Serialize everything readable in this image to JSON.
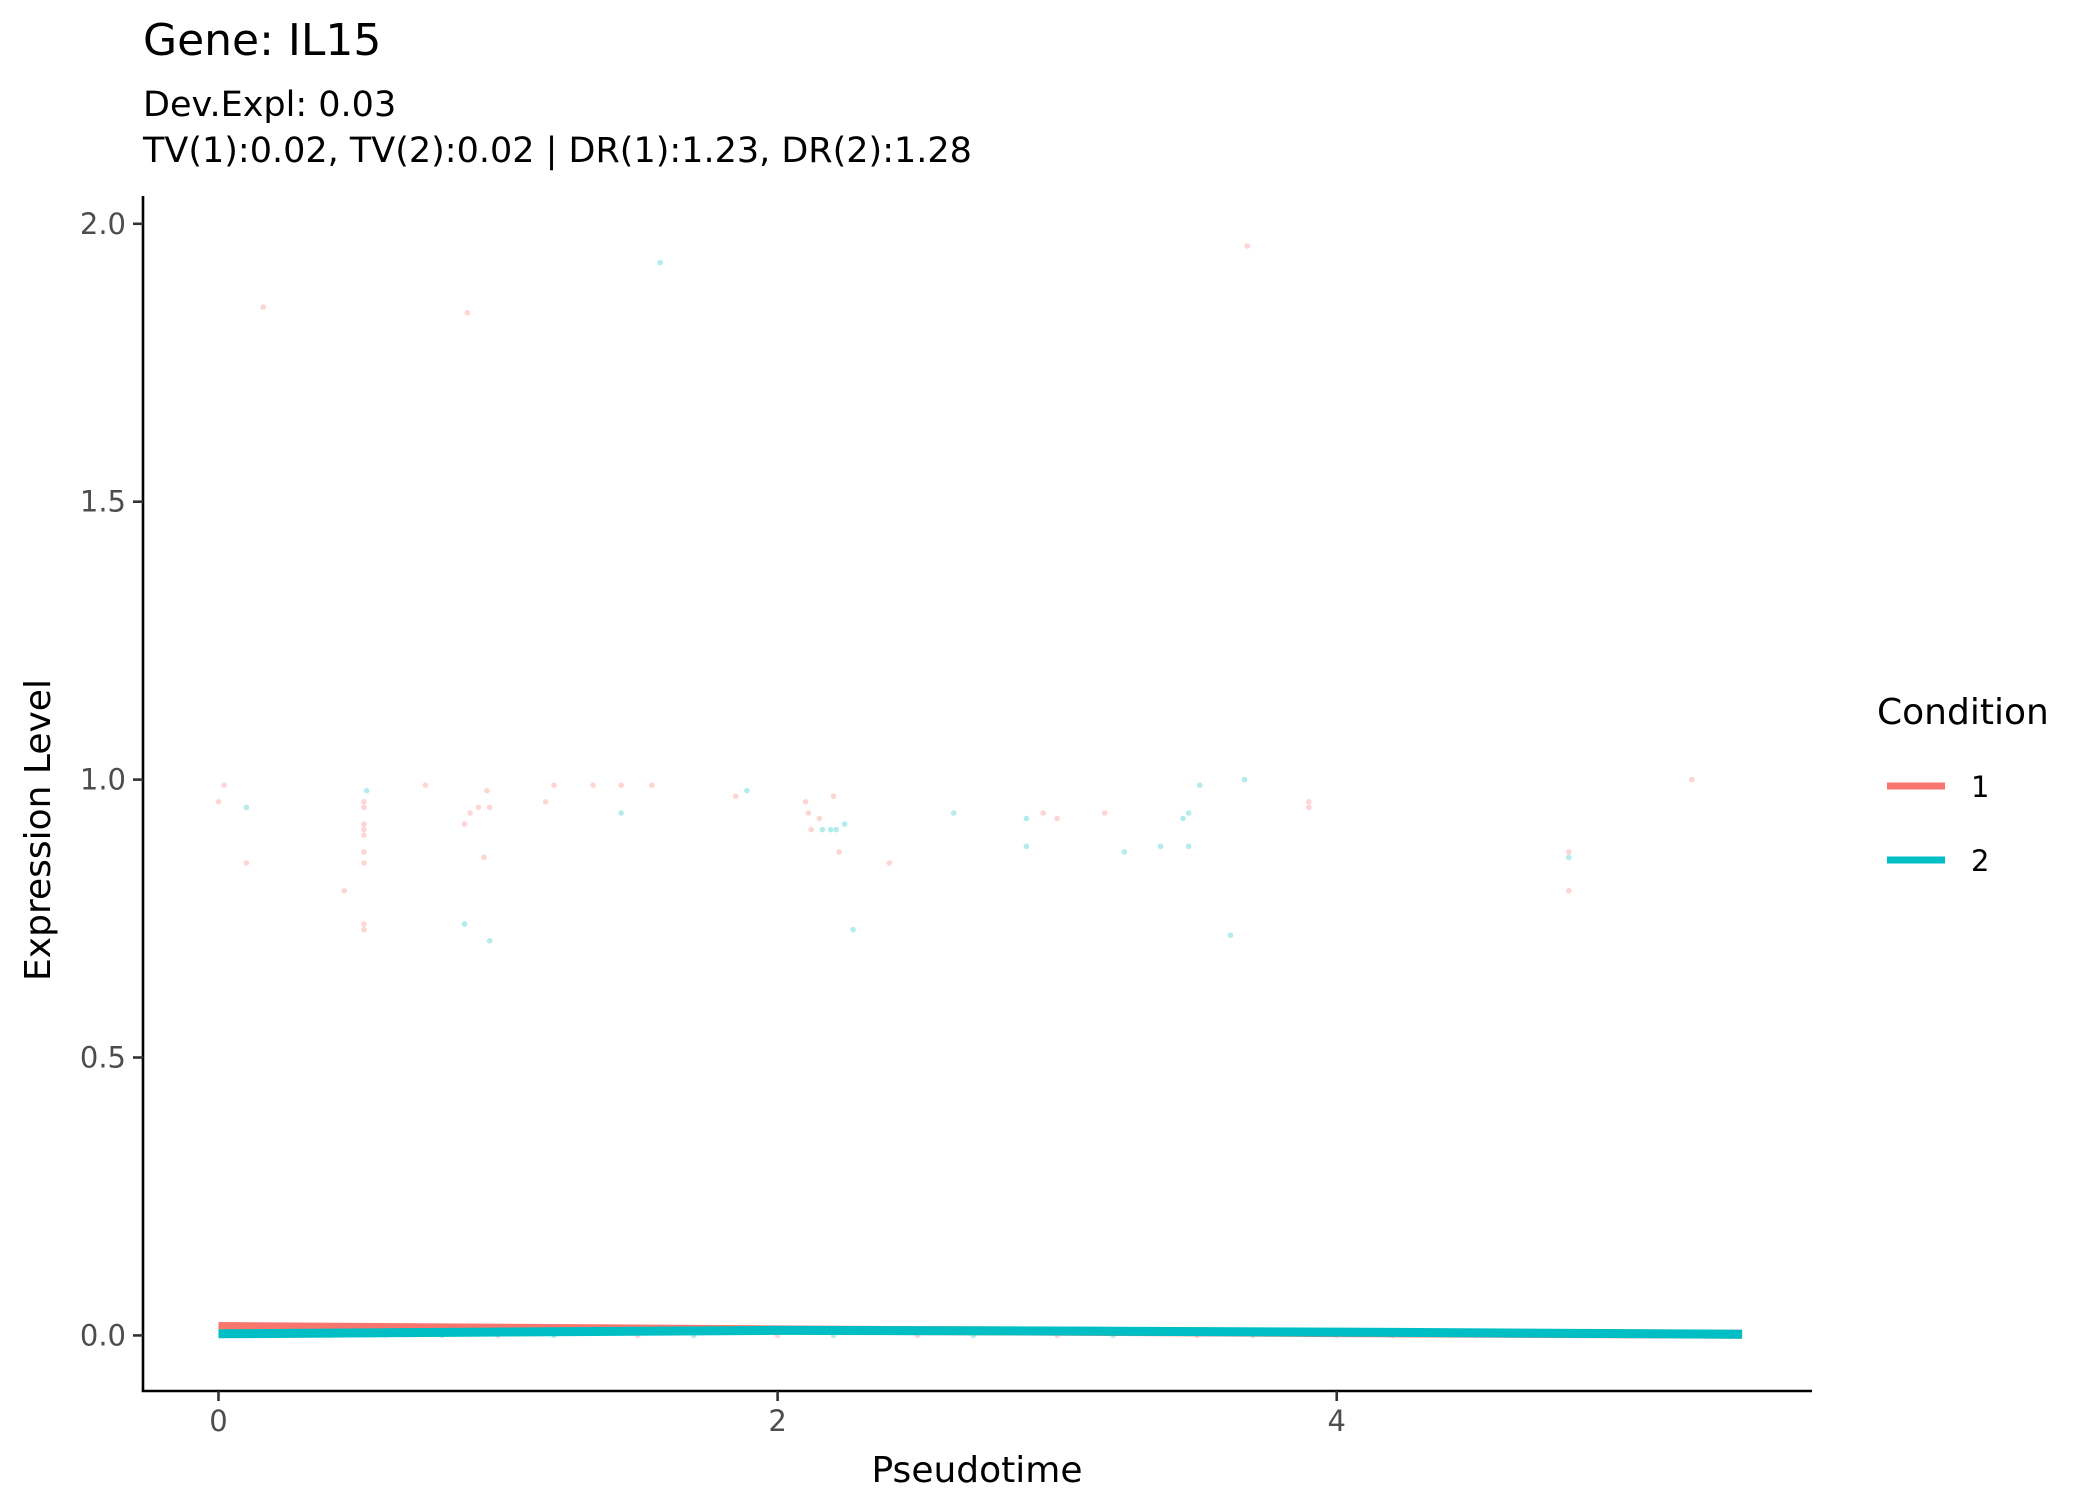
{
  "chart_data": {
    "type": "scatter",
    "title": "Gene: IL15",
    "subtitle_lines": [
      "Dev.Expl: 0.03",
      "TV(1):0.02, TV(2):0.02 | DR(1):1.23, DR(2):1.28"
    ],
    "xlabel": "Pseudotime",
    "ylabel": "Expression Level",
    "xlim": [
      -0.27,
      5.7
    ],
    "ylim": [
      -0.1,
      2.05
    ],
    "x_ticks": [
      0,
      2,
      4
    ],
    "x_tick_labels": [
      "0",
      "2",
      "4"
    ],
    "y_ticks": [
      0.0,
      0.5,
      1.0,
      1.5,
      2.0
    ],
    "y_tick_labels": [
      "0.0",
      "0.5",
      "1.0",
      "1.5",
      "2.0"
    ],
    "grid": false,
    "legend": {
      "title": "Condition",
      "placement": "right",
      "entries": [
        {
          "label": "1",
          "color": "#F8766D"
        },
        {
          "label": "2",
          "color": "#00BFC4"
        }
      ]
    },
    "series": [
      {
        "name": "1",
        "color": "#F8766D",
        "points": [
          [
            0.0,
            0.96
          ],
          [
            0.02,
            0.99
          ],
          [
            0.1,
            0.85
          ],
          [
            0.16,
            1.85
          ],
          [
            0.45,
            0.8
          ],
          [
            0.52,
            0.92
          ],
          [
            0.52,
            0.96
          ],
          [
            0.52,
            0.95
          ],
          [
            0.52,
            0.9
          ],
          [
            0.52,
            0.91
          ],
          [
            0.52,
            0.87
          ],
          [
            0.52,
            0.85
          ],
          [
            0.52,
            0.74
          ],
          [
            0.52,
            0.73
          ],
          [
            0.74,
            0.99
          ],
          [
            0.88,
            0.92
          ],
          [
            0.89,
            1.84
          ],
          [
            0.9,
            0.94
          ],
          [
            0.93,
            0.95
          ],
          [
            0.95,
            0.86
          ],
          [
            0.96,
            0.98
          ],
          [
            0.97,
            0.95
          ],
          [
            1.17,
            0.96
          ],
          [
            1.2,
            0.99
          ],
          [
            1.34,
            0.99
          ],
          [
            1.44,
            0.99
          ],
          [
            1.55,
            0.99
          ],
          [
            1.85,
            0.97
          ],
          [
            2.1,
            0.96
          ],
          [
            2.11,
            0.94
          ],
          [
            2.12,
            0.91
          ],
          [
            2.15,
            0.93
          ],
          [
            2.2,
            0.97
          ],
          [
            2.22,
            0.87
          ],
          [
            2.4,
            0.85
          ],
          [
            2.95,
            0.94
          ],
          [
            3.0,
            0.93
          ],
          [
            3.17,
            0.94
          ],
          [
            3.68,
            1.96
          ],
          [
            3.9,
            0.96
          ],
          [
            3.9,
            0.95
          ],
          [
            4.83,
            0.87
          ],
          [
            4.83,
            0.8
          ],
          [
            5.27,
            1.0
          ],
          [
            0.05,
            0.0
          ],
          [
            0.3,
            0.0
          ],
          [
            0.6,
            0.0
          ],
          [
            1.0,
            0.0
          ],
          [
            1.5,
            0.0
          ],
          [
            2.0,
            0.0
          ],
          [
            2.5,
            0.0
          ],
          [
            3.0,
            0.0
          ],
          [
            3.5,
            0.0
          ],
          [
            4.0,
            0.0
          ],
          [
            4.5,
            0.0
          ],
          [
            5.0,
            0.0
          ]
        ],
        "fit": [
          [
            0.0,
            0.016
          ],
          [
            2.0,
            0.01
          ],
          [
            4.0,
            0.005
          ],
          [
            5.45,
            0.002
          ]
        ]
      },
      {
        "name": "2",
        "color": "#00BFC4",
        "points": [
          [
            0.1,
            0.95
          ],
          [
            0.53,
            0.98
          ],
          [
            0.88,
            0.74
          ],
          [
            0.97,
            0.71
          ],
          [
            1.44,
            0.94
          ],
          [
            1.58,
            1.93
          ],
          [
            1.89,
            0.98
          ],
          [
            2.16,
            0.91
          ],
          [
            2.19,
            0.91
          ],
          [
            2.21,
            0.91
          ],
          [
            2.24,
            0.92
          ],
          [
            2.27,
            0.73
          ],
          [
            2.63,
            0.94
          ],
          [
            2.89,
            0.93
          ],
          [
            2.89,
            0.88
          ],
          [
            3.24,
            0.87
          ],
          [
            3.37,
            0.88
          ],
          [
            3.45,
            0.93
          ],
          [
            3.47,
            0.88
          ],
          [
            3.47,
            0.94
          ],
          [
            3.51,
            0.99
          ],
          [
            3.62,
            0.72
          ],
          [
            3.67,
            1.0
          ],
          [
            4.83,
            0.86
          ],
          [
            0.1,
            0.0
          ],
          [
            0.4,
            0.0
          ],
          [
            0.8,
            0.0
          ],
          [
            1.2,
            0.0
          ],
          [
            1.7,
            0.0
          ],
          [
            2.2,
            0.0
          ],
          [
            2.7,
            0.0
          ],
          [
            3.2,
            0.0
          ],
          [
            3.7,
            0.0
          ],
          [
            4.2,
            0.0
          ],
          [
            4.7,
            0.0
          ],
          [
            5.3,
            0.0
          ]
        ],
        "fit": [
          [
            0.0,
            0.003
          ],
          [
            2.0,
            0.009
          ],
          [
            3.0,
            0.008
          ],
          [
            4.0,
            0.006
          ],
          [
            5.45,
            0.002
          ]
        ]
      }
    ]
  }
}
